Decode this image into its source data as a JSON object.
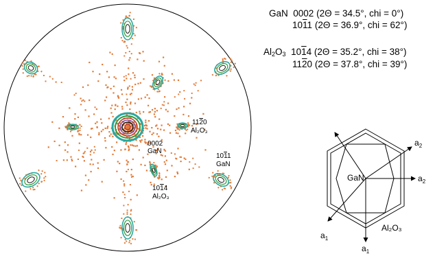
{
  "legend": {
    "gan_label": "GaN",
    "gan_0002_index": "0002",
    "gan_0002_params": "(2Θ = 34.5°, chi = 0°)",
    "gan_1011_index": [
      "10",
      "1",
      "1"
    ],
    "gan_1011_params": "(2Θ = 36.9°, chi = 62°)",
    "al2o3_label_main": "Al",
    "al2o3_sub1": "2",
    "al2o3_mid": "O",
    "al2o3_sub2": "3",
    "al2o3_1014_index": [
      "10",
      "1",
      "4"
    ],
    "al2o3_1014_params": "(2Θ = 35.2°, chi = 38°)",
    "al2o3_1120_index": [
      "11",
      "2",
      "0"
    ],
    "al2o3_1120_params": "(2Θ = 37.8°, chi = 39°)"
  },
  "pole_figure": {
    "annotations": {
      "label_0002": "0002",
      "label_0002_phase": "GaN",
      "label_1120": "11",
      "label_1120_bar": "2",
      "label_1120_end": "0",
      "label_1120_phase": "Al₂O₃",
      "label_1011": "10",
      "label_1011_bar": "1",
      "label_1011_end": "1",
      "label_1011_phase": "GaN",
      "label_1014": "10",
      "label_1014_bar": "1",
      "label_1014_end": "4",
      "label_1014_phase": "Al₂O₃"
    },
    "colors": {
      "scatter": "#e07b39",
      "contour_cyan": "#2aa7a0",
      "contour_green": "#2c9a3c",
      "contour_dark": "#1a1a1a",
      "contour_red": "#c0392b",
      "contour_purple": "#7a4fa0"
    }
  },
  "hex_diagram": {
    "inner_label": "GaN",
    "outer_label": "Al₂O₃",
    "a1": "a",
    "a1_sub": "1",
    "a2": "a",
    "a2_sub": "2"
  }
}
